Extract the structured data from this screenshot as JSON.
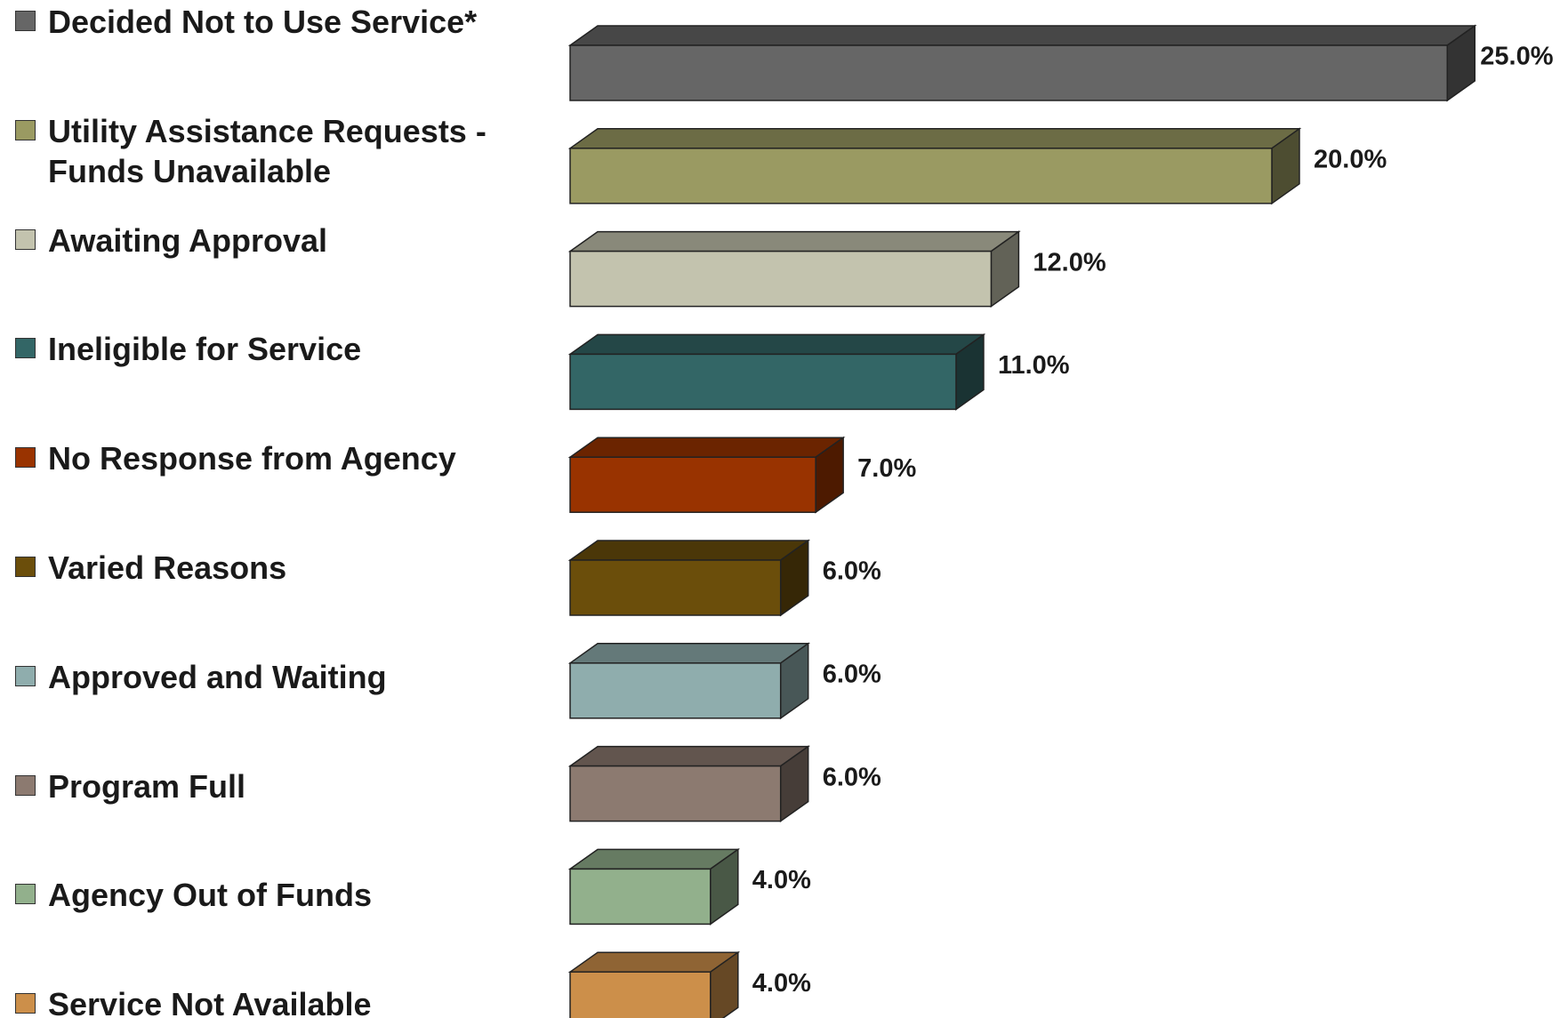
{
  "chart_data": {
    "type": "bar3d",
    "categories": [
      "Decided Not to Use Service*",
      "Utility Assistance Requests - Funds Unavailable",
      "Awaiting Approval",
      "Ineligible for Service",
      "No Response from Agency",
      "Varied Reasons",
      "Approved and Waiting",
      "Program Full",
      "Agency Out of Funds",
      "Service Not Available"
    ],
    "values": [
      25,
      20,
      12,
      11,
      7,
      6,
      6,
      6,
      4,
      4
    ],
    "value_labels": [
      "25.0%",
      "20.0%",
      "12.0%",
      "11.0%",
      "7.0%",
      "6.0%",
      "6.0%",
      "6.0%",
      "4.0%",
      "4.0%"
    ],
    "colors": [
      "#666666",
      "#9a9a62",
      "#c3c3ae",
      "#336666",
      "#993300",
      "#6b4e0b",
      "#8fadad",
      "#8c7a70",
      "#92b08c",
      "#cc8f4a"
    ]
  }
}
